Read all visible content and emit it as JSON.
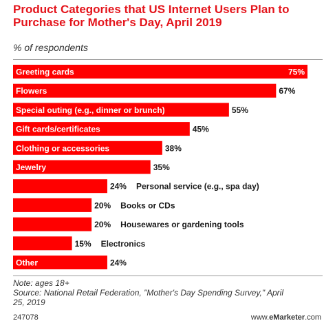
{
  "chart_data": {
    "type": "bar",
    "orientation": "horizontal",
    "title": "Product Categories that US Internet Users Plan to Purchase for Mother's Day, April 2019",
    "subtitle": "% of respondents",
    "categories": [
      "Greeting cards",
      "Flowers",
      "Special outing (e.g., dinner or brunch)",
      "Gift cards/certificates",
      "Clothing or accessories",
      "Jewelry",
      "Personal service (e.g., spa day)",
      "Books or CDs",
      "Housewares or gardening tools",
      "Electronics",
      "Other"
    ],
    "values": [
      75,
      67,
      55,
      45,
      38,
      35,
      24,
      20,
      20,
      15,
      24
    ],
    "value_labels": [
      "75%",
      "67%",
      "55%",
      "45%",
      "38%",
      "35%",
      "24%",
      "20%",
      "20%",
      "15%",
      "24%"
    ],
    "xlim": [
      0,
      75
    ],
    "grid": false,
    "bar_color": "#ff0000"
  },
  "footer": {
    "note": "Note: ages 18+",
    "source_line1": "Source: National Retail Federation, \"Mother's Day Spending Survey,\" April",
    "source_line2": "25, 2019",
    "code": "247078",
    "site_prefix": "www.",
    "site_brand": "eMarketer",
    "site_suffix": ".com"
  }
}
